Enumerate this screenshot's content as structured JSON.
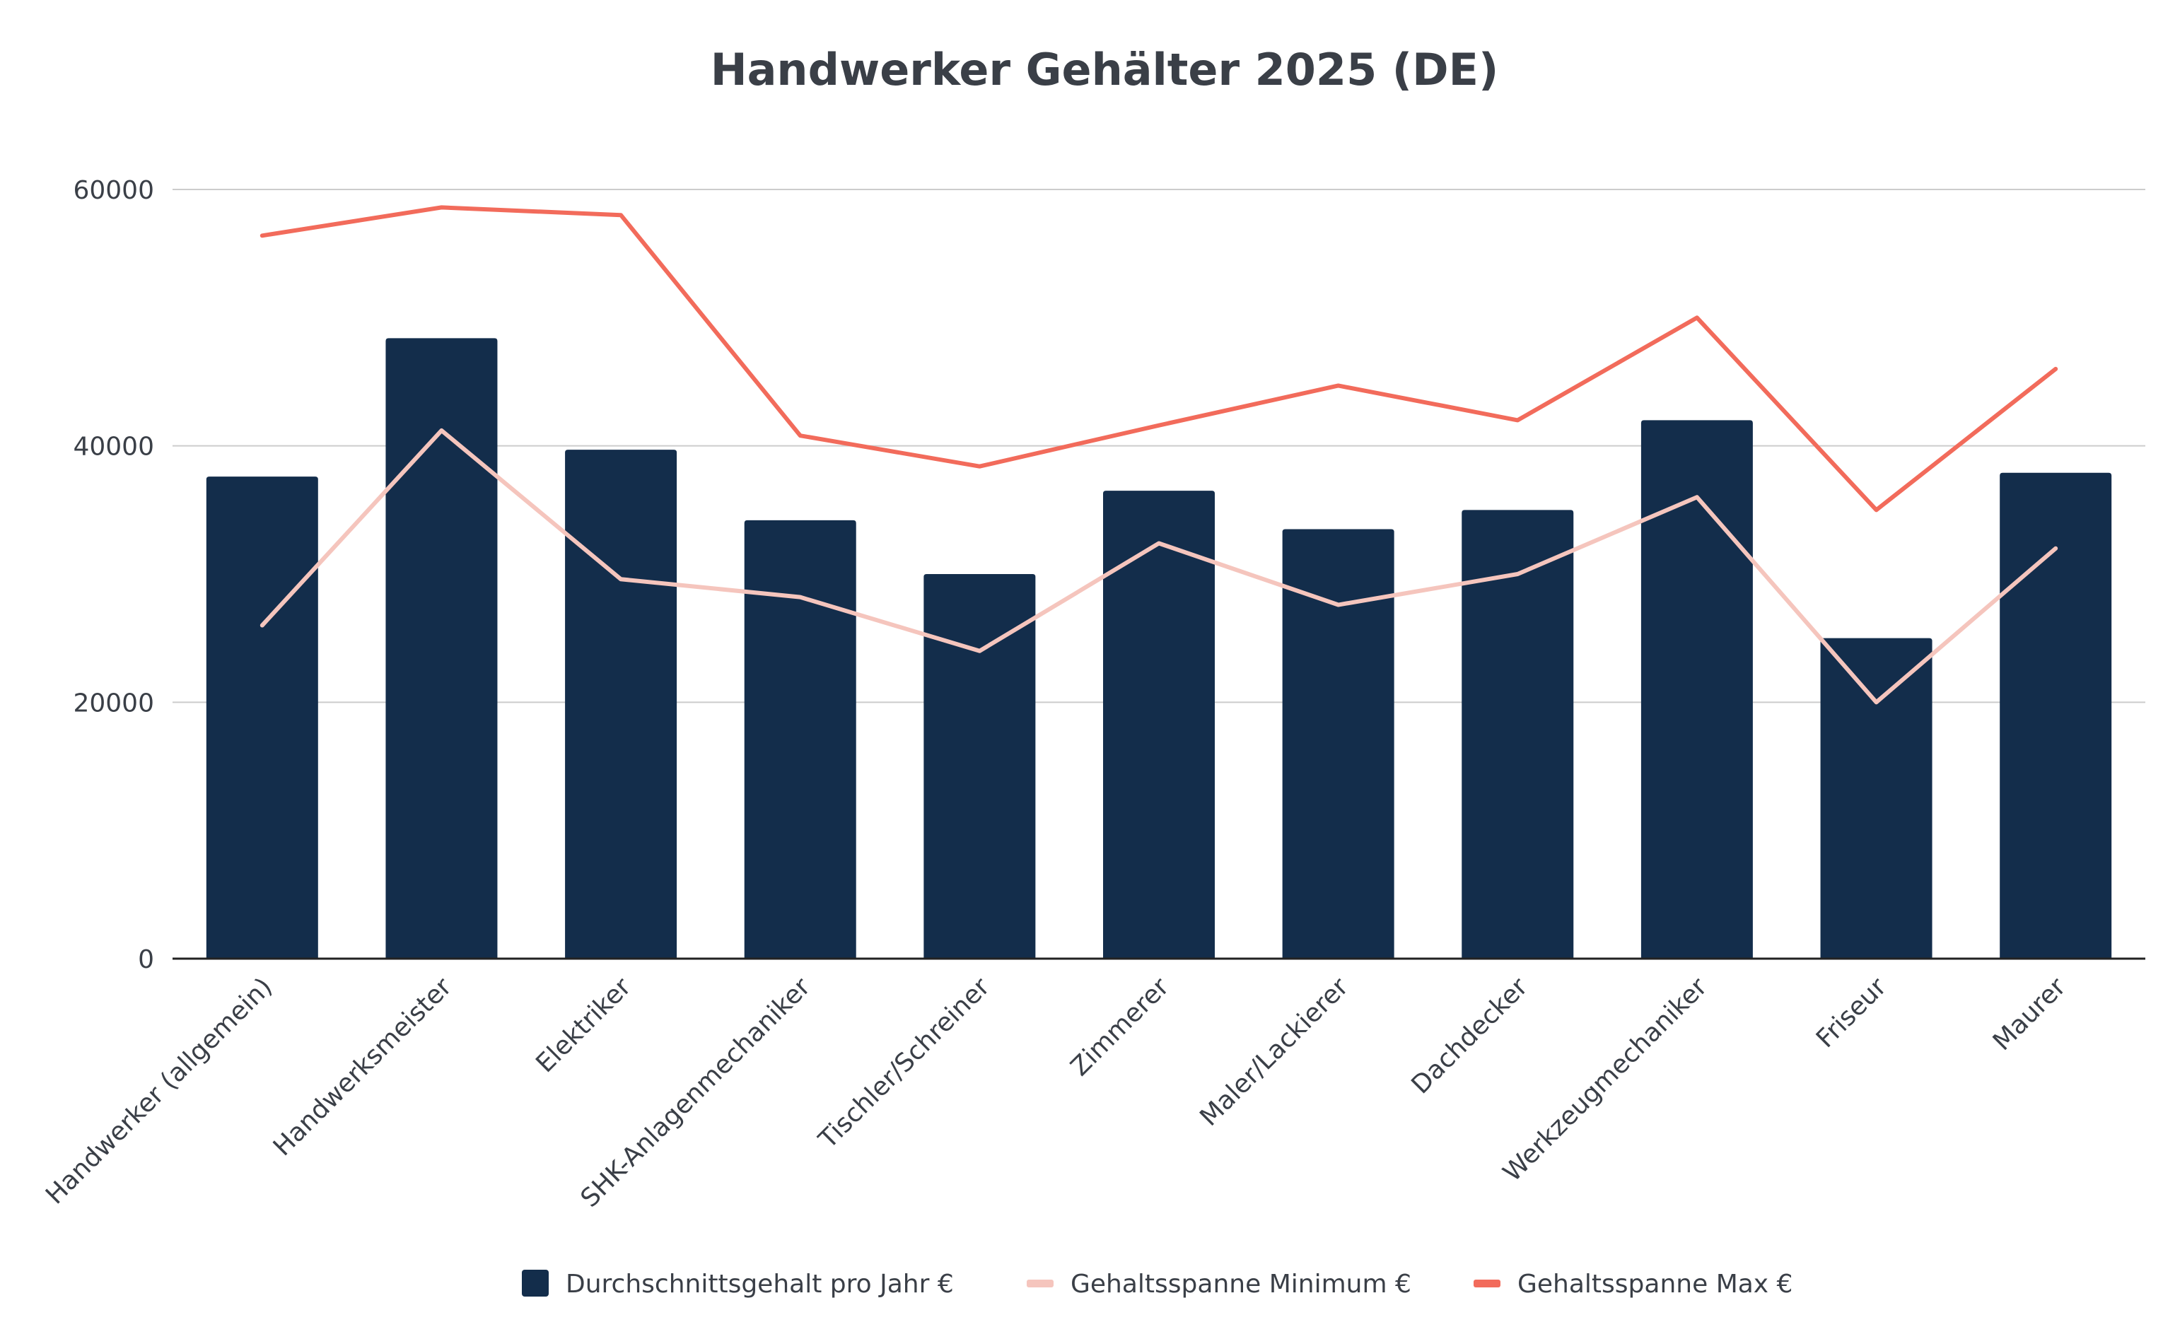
{
  "chart_data": {
    "type": "bar",
    "title": "Handwerker Gehälter 2025 (DE)",
    "xlabel": "",
    "ylabel": "",
    "ylim": [
      0,
      60000
    ],
    "yticks": [
      "0",
      "20000",
      "40000",
      "60000"
    ],
    "grid": true,
    "legend_position": "bottom",
    "categories": [
      "Handwerker (allgemein)",
      "Handwerksmeister",
      "Elektriker",
      "SHK-Anlagenmechaniker",
      "Tischler/Schreiner",
      "Zimmerer",
      "Maler/Lackierer",
      "Dachdecker",
      "Werkzeugmechaniker",
      "Friseur",
      "Maurer"
    ],
    "series": [
      {
        "name": "Durchschnittsgehalt pro Jahr €",
        "type": "bar",
        "color": "#132d4b",
        "values": [
          37600,
          48400,
          39700,
          34200,
          30000,
          36500,
          33500,
          35000,
          42000,
          25000,
          37900
        ]
      },
      {
        "name": "Gehaltsspanne Minimum €",
        "type": "line",
        "color": "#f5c5bd",
        "values": [
          26000,
          41200,
          29600,
          28200,
          24000,
          32400,
          27600,
          30000,
          36000,
          20000,
          32000
        ]
      },
      {
        "name": "Gehaltsspanne Max €",
        "type": "line",
        "color": "#f26b5b",
        "values": [
          56400,
          58600,
          58000,
          40800,
          38400,
          41600,
          44700,
          42000,
          50000,
          35000,
          46000
        ]
      }
    ]
  }
}
